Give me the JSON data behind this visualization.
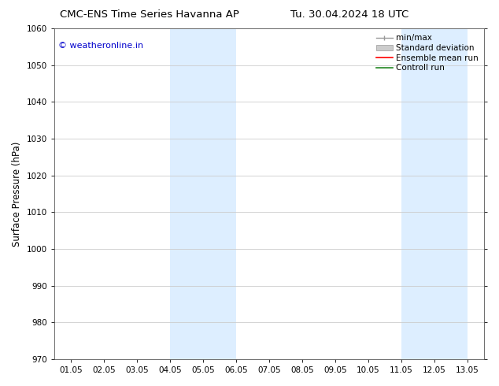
{
  "title_left": "CMC-ENS Time Series Havanna AP",
  "title_right": "Tu. 30.04.2024 18 UTC",
  "ylabel": "Surface Pressure (hPa)",
  "ylim": [
    970,
    1060
  ],
  "yticks": [
    970,
    980,
    990,
    1000,
    1010,
    1020,
    1030,
    1040,
    1050,
    1060
  ],
  "xtick_labels": [
    "01.05",
    "02.05",
    "03.05",
    "04.05",
    "05.05",
    "06.05",
    "07.05",
    "08.05",
    "09.05",
    "10.05",
    "11.05",
    "12.05",
    "13.05"
  ],
  "xtick_positions": [
    0,
    1,
    2,
    3,
    4,
    5,
    6,
    7,
    8,
    9,
    10,
    11,
    12
  ],
  "xlim_start": -0.5,
  "xlim_end": 12.5,
  "shaded_bands": [
    {
      "x_start": 3.0,
      "x_end": 5.0
    },
    {
      "x_start": 10.0,
      "x_end": 12.0
    }
  ],
  "shaded_color": "#ddeeff",
  "watermark_text": "© weatheronline.in",
  "watermark_color": "#0000cc",
  "legend_entries": [
    {
      "label": "min/max",
      "color": "#aaaaaa"
    },
    {
      "label": "Standard deviation",
      "color": "#cccccc"
    },
    {
      "label": "Ensemble mean run",
      "color": "#ff0000"
    },
    {
      "label": "Controll run",
      "color": "#228822"
    }
  ],
  "bg_color": "#ffffff",
  "grid_color": "#cccccc",
  "title_fontsize": 9.5,
  "tick_fontsize": 7.5,
  "ylabel_fontsize": 8.5,
  "legend_fontsize": 7.5,
  "watermark_fontsize": 8
}
